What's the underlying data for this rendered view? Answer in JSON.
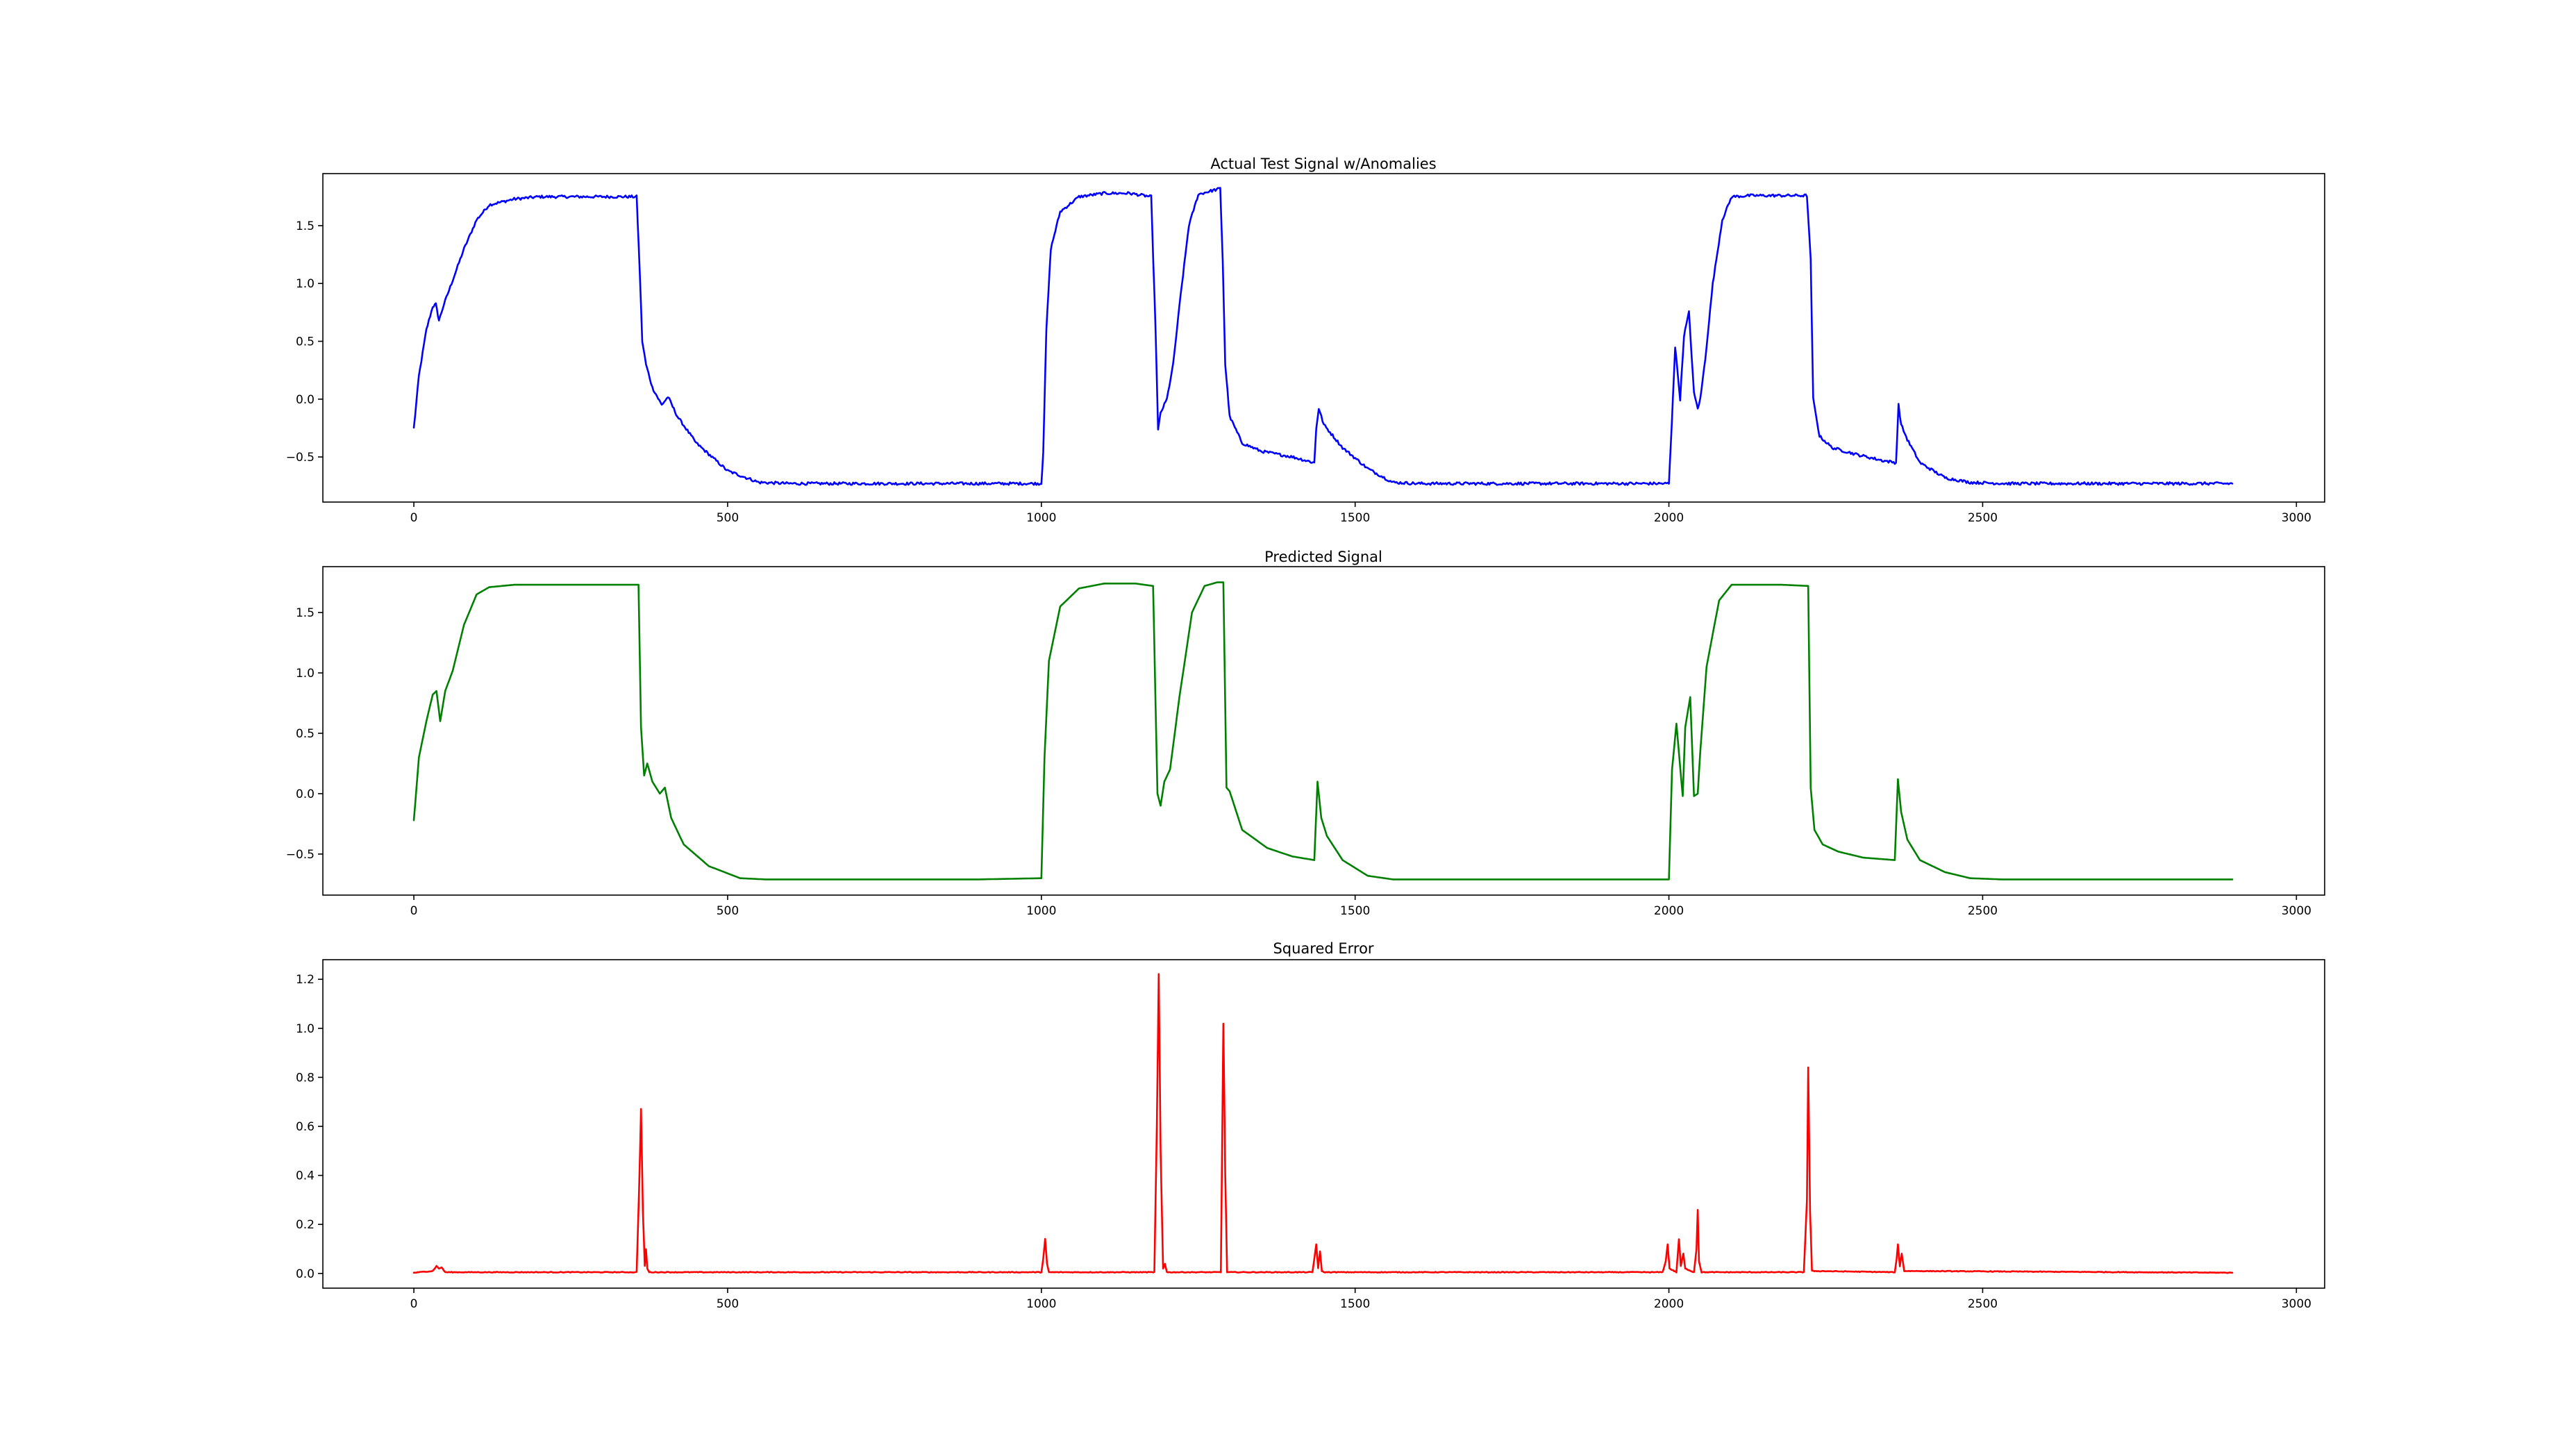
{
  "chart_data": [
    {
      "type": "line",
      "title": "Actual Test Signal w/Anomalies",
      "xlabel": "",
      "ylabel": "",
      "xlim": [
        -145,
        3045
      ],
      "ylim": [
        -0.89,
        1.95
      ],
      "xticks": [
        0,
        500,
        1000,
        1500,
        2000,
        2500,
        3000
      ],
      "xtick_labels": [
        "0",
        "500",
        "1000",
        "1500",
        "2000",
        "2500",
        "3000"
      ],
      "yticks": [
        -0.5,
        0.0,
        0.5,
        1.0,
        1.5
      ],
      "ytick_labels": [
        "−0.5",
        "0.0",
        "0.5",
        "1.0",
        "1.5"
      ],
      "grid": false,
      "series": [
        {
          "color": "#0000ff",
          "noise": 0.012,
          "x": [
            0,
            8,
            20,
            30,
            35,
            40,
            48,
            60,
            80,
            100,
            120,
            160,
            200,
            300,
            355,
            360,
            364,
            370,
            380,
            395,
            405,
            420,
            450,
            500,
            550,
            600,
            700,
            800,
            900,
            1000,
            1003,
            1008,
            1015,
            1030,
            1060,
            1100,
            1140,
            1175,
            1182,
            1186,
            1190,
            1200,
            1210,
            1222,
            1235,
            1250,
            1270,
            1285,
            1289,
            1293,
            1300,
            1320,
            1350,
            1400,
            1435,
            1438,
            1442,
            1450,
            1480,
            1520,
            1560,
            1600,
            1700,
            1800,
            1900,
            2000,
            2003,
            2010,
            2018,
            2024,
            2032,
            2040,
            2046,
            2050,
            2058,
            2070,
            2085,
            2100,
            2130,
            2180,
            2220,
            2226,
            2230,
            2240,
            2260,
            2300,
            2340,
            2362,
            2366,
            2370,
            2380,
            2400,
            2440,
            2480,
            2540,
            2600,
            2700,
            2800,
            2898
          ],
          "y": [
            -0.25,
            0.2,
            0.6,
            0.8,
            0.82,
            0.68,
            0.82,
            1.0,
            1.3,
            1.55,
            1.68,
            1.73,
            1.75,
            1.75,
            1.75,
            1.1,
            0.5,
            0.3,
            0.1,
            -0.05,
            0.02,
            -0.15,
            -0.38,
            -0.62,
            -0.72,
            -0.73,
            -0.73,
            -0.73,
            -0.73,
            -0.73,
            -0.45,
            0.6,
            1.3,
            1.62,
            1.75,
            1.78,
            1.78,
            1.75,
            0.6,
            -0.27,
            -0.12,
            0.0,
            0.3,
            0.9,
            1.5,
            1.77,
            1.8,
            1.82,
            1.2,
            0.3,
            -0.15,
            -0.38,
            -0.45,
            -0.5,
            -0.55,
            -0.25,
            -0.08,
            -0.22,
            -0.42,
            -0.6,
            -0.72,
            -0.73,
            -0.73,
            -0.73,
            -0.73,
            -0.73,
            -0.4,
            0.45,
            0.0,
            0.55,
            0.75,
            0.05,
            -0.08,
            0.0,
            0.35,
            1.0,
            1.55,
            1.75,
            1.76,
            1.76,
            1.76,
            1.2,
            0.0,
            -0.32,
            -0.42,
            -0.48,
            -0.53,
            -0.55,
            -0.05,
            -0.22,
            -0.35,
            -0.55,
            -0.68,
            -0.72,
            -0.73,
            -0.73,
            -0.73,
            -0.73,
            -0.73
          ]
        }
      ]
    },
    {
      "type": "line",
      "title": "Predicted Signal",
      "xlabel": "",
      "ylabel": "",
      "xlim": [
        -145,
        3045
      ],
      "ylim": [
        -0.84,
        1.88
      ],
      "xticks": [
        0,
        500,
        1000,
        1500,
        2000,
        2500,
        3000
      ],
      "xtick_labels": [
        "0",
        "500",
        "1000",
        "1500",
        "2000",
        "2500",
        "3000"
      ],
      "yticks": [
        -0.5,
        0.0,
        0.5,
        1.0,
        1.5
      ],
      "ytick_labels": [
        "−0.5",
        "0.0",
        "0.5",
        "1.0",
        "1.5"
      ],
      "grid": false,
      "series": [
        {
          "color": "#008000",
          "noise": 0,
          "x": [
            0,
            8,
            20,
            30,
            36,
            42,
            50,
            62,
            80,
            100,
            120,
            160,
            200,
            300,
            358,
            362,
            367,
            372,
            380,
            392,
            400,
            410,
            430,
            470,
            520,
            560,
            600,
            700,
            800,
            900,
            1000,
            1005,
            1012,
            1030,
            1060,
            1100,
            1150,
            1178,
            1185,
            1190,
            1196,
            1205,
            1220,
            1240,
            1260,
            1280,
            1290,
            1295,
            1300,
            1320,
            1360,
            1400,
            1435,
            1440,
            1446,
            1455,
            1480,
            1520,
            1560,
            1600,
            1700,
            1800,
            1900,
            2000,
            2005,
            2012,
            2022,
            2026,
            2034,
            2040,
            2046,
            2050,
            2060,
            2080,
            2100,
            2130,
            2180,
            2222,
            2226,
            2232,
            2245,
            2270,
            2310,
            2360,
            2365,
            2370,
            2380,
            2400,
            2440,
            2480,
            2530,
            2600,
            2700,
            2800,
            2898
          ],
          "y": [
            -0.22,
            0.3,
            0.6,
            0.82,
            0.85,
            0.6,
            0.85,
            1.02,
            1.4,
            1.65,
            1.71,
            1.73,
            1.73,
            1.73,
            1.73,
            0.55,
            0.15,
            0.25,
            0.1,
            0.0,
            0.05,
            -0.2,
            -0.42,
            -0.6,
            -0.7,
            -0.71,
            -0.71,
            -0.71,
            -0.71,
            -0.71,
            -0.7,
            0.3,
            1.1,
            1.55,
            1.7,
            1.74,
            1.74,
            1.72,
            0.0,
            -0.1,
            0.1,
            0.2,
            0.8,
            1.5,
            1.72,
            1.75,
            1.75,
            0.05,
            0.02,
            -0.3,
            -0.45,
            -0.52,
            -0.55,
            0.1,
            -0.2,
            -0.35,
            -0.55,
            -0.68,
            -0.71,
            -0.71,
            -0.71,
            -0.71,
            -0.71,
            -0.71,
            0.2,
            0.58,
            -0.02,
            0.55,
            0.8,
            -0.02,
            0.0,
            0.35,
            1.05,
            1.6,
            1.73,
            1.73,
            1.73,
            1.72,
            0.05,
            -0.3,
            -0.42,
            -0.48,
            -0.53,
            -0.55,
            0.12,
            -0.15,
            -0.38,
            -0.55,
            -0.65,
            -0.7,
            -0.71,
            -0.71,
            -0.71,
            -0.71,
            -0.71
          ]
        }
      ]
    },
    {
      "type": "line",
      "title": "Squared Error",
      "xlabel": "",
      "ylabel": "",
      "xlim": [
        -145,
        3045
      ],
      "ylim": [
        -0.06,
        1.28
      ],
      "xticks": [
        0,
        500,
        1000,
        1500,
        2000,
        2500,
        3000
      ],
      "xtick_labels": [
        "0",
        "500",
        "1000",
        "1500",
        "2000",
        "2500",
        "3000"
      ],
      "yticks": [
        0.0,
        0.2,
        0.4,
        0.6,
        0.8,
        1.0,
        1.2
      ],
      "ytick_labels": [
        "0.0",
        "0.2",
        "0.4",
        "0.6",
        "0.8",
        "1.0",
        "1.2"
      ],
      "grid": false,
      "series": [
        {
          "color": "#ff0000",
          "noise": 0.0015,
          "x": [
            0,
            30,
            36,
            40,
            44,
            50,
            355,
            359,
            362,
            365,
            368,
            370,
            372,
            375,
            1000,
            1003,
            1006,
            1009,
            1012,
            1180,
            1184,
            1187,
            1190,
            1194,
            1197,
            1200,
            1204,
            1286,
            1290,
            1293,
            1296,
            1432,
            1435,
            1438,
            1441,
            1444,
            1447,
            1450,
            1990,
            1995,
            1998,
            2001,
            2012,
            2016,
            2019,
            2023,
            2026,
            2040,
            2044,
            2046,
            2048,
            2052,
            2215,
            2220,
            2222,
            2225,
            2228,
            2360,
            2363,
            2365,
            2368,
            2371,
            2375,
            2898
          ],
          "y": [
            0.003,
            0.01,
            0.03,
            0.02,
            0.025,
            0.005,
            0.005,
            0.35,
            0.67,
            0.25,
            0.03,
            0.1,
            0.02,
            0.005,
            0.005,
            0.06,
            0.14,
            0.04,
            0.005,
            0.005,
            0.6,
            1.22,
            0.5,
            0.02,
            0.04,
            0.005,
            0.005,
            0.005,
            1.02,
            0.4,
            0.005,
            0.005,
            0.06,
            0.12,
            0.02,
            0.09,
            0.01,
            0.005,
            0.005,
            0.05,
            0.12,
            0.02,
            0.005,
            0.14,
            0.03,
            0.08,
            0.02,
            0.005,
            0.1,
            0.26,
            0.05,
            0.005,
            0.005,
            0.3,
            0.84,
            0.25,
            0.01,
            0.005,
            0.06,
            0.12,
            0.03,
            0.08,
            0.01,
            0.003
          ]
        }
      ]
    }
  ]
}
